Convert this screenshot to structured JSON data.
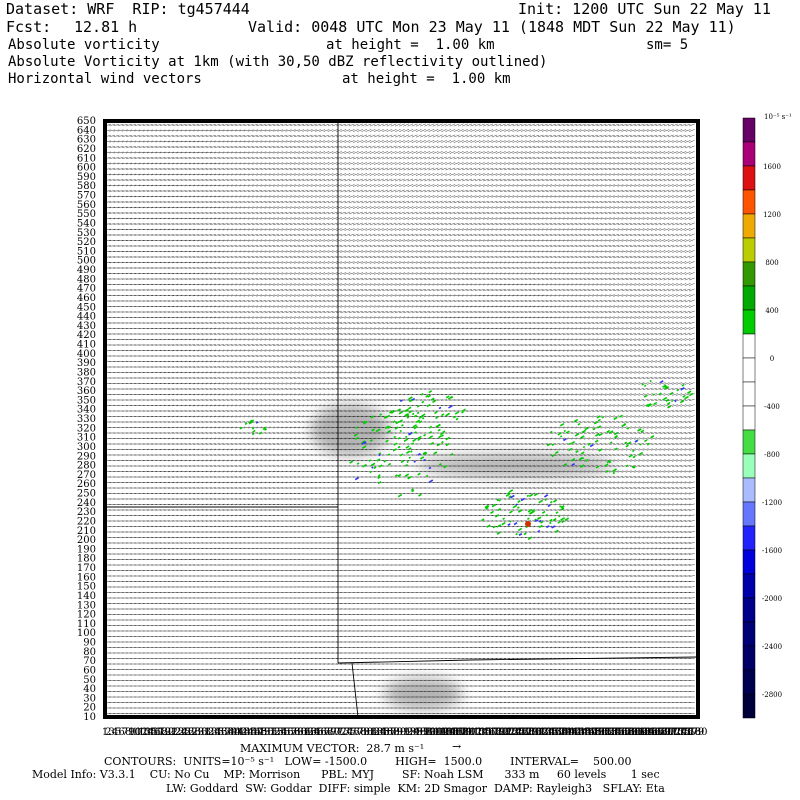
{
  "header": {
    "dataset": "Dataset: WRF  RIP: tg457444",
    "init": "Init: 1200 UTC Sun 22 May 11",
    "fcst_label": "Fcst:",
    "fcst_value": "12.81 h",
    "valid": "Valid: 0048 UTC Mon 23 May 11 (1848 MDT Sun 22 May 11)",
    "field1_name": "Absolute vorticity",
    "field1_height": "at height =  1.00 km",
    "field1_sm": "sm= 5",
    "field2_name": "Absolute Vorticity at 1km (with 30,50 dBZ reflectivity outlined)",
    "field3_name": "Horizontal wind vectors",
    "field3_height": "at height =  1.00 km"
  },
  "footer": {
    "max_vector": "MAXIMUM VECTOR:  28.7 m s⁻¹",
    "contours": "CONTOURS:  UNITS=10⁻⁵ s⁻¹   LOW= -1500.0        HIGH=  1500.0        INTERVAL=    500.00",
    "model_info": "Model Info: V3.3.1    CU: No Cu    MP: Morrison      PBL: MYJ        SF: Noah LSM      333 m     60 levels       1 sec",
    "model_info2": "LW: Goddard  SW: Goddar  DIFF: simple  KM: 2D Smagor  DAMP: Rayleigh3   SFLAY: Eta"
  },
  "colors": {
    "frame": "#000000",
    "wind_vectors": "#222222",
    "reflectivity_shading": "#b4b4b4",
    "positive_vorticity": "#00cc00",
    "negative_vorticity": "#3333ff",
    "state_lines": "#000000"
  },
  "chart_data": {
    "type": "heatmap",
    "x_axis": {
      "range": [
        1,
        180
      ],
      "tick_step": 1,
      "label": ""
    },
    "y_axis": {
      "range": [
        10,
        650
      ],
      "tick_labels": [
        "650",
        "640",
        "630",
        "620",
        "610",
        "600",
        "590",
        "580",
        "570",
        "560",
        "550",
        "540",
        "530",
        "520",
        "510",
        "500",
        "490",
        "480",
        "470",
        "460",
        "450",
        "440",
        "430",
        "420",
        "410",
        "400",
        "390",
        "380",
        "370",
        "360",
        "350",
        "340",
        "330",
        "320",
        "310",
        "300",
        "290",
        "280",
        "270",
        "260",
        "250",
        "240",
        "230",
        "220",
        "210",
        "200",
        "190",
        "180",
        "170",
        "160",
        "150",
        "140",
        "130",
        "120",
        "110",
        "100",
        "90",
        "80",
        "70",
        "60",
        "50",
        "40",
        "30",
        "20",
        "10"
      ]
    },
    "colorbar": {
      "units_label": "10⁻⁵ s⁻¹",
      "levels": [
        {
          "value": 1600,
          "label": "1600",
          "color": "#dd1111"
        },
        {
          "value": 1200,
          "label": "1200",
          "color": "#eeaa00"
        },
        {
          "value": 800,
          "label": "800",
          "color": "#339900"
        },
        {
          "value": 400,
          "label": "400",
          "color": "#00cc00"
        },
        {
          "value": 0,
          "label": "0",
          "color": "#ffffff"
        },
        {
          "value": -400,
          "label": "-400",
          "color": "#44dd44"
        },
        {
          "value": -800,
          "label": "-800",
          "color": "#99ffbb"
        },
        {
          "value": -1200,
          "label": "-1200",
          "color": "#6677ff"
        },
        {
          "value": -1600,
          "label": "-1600",
          "color": "#0000dd"
        },
        {
          "value": -2000,
          "label": "-2000",
          "color": "#00008b"
        },
        {
          "value": -2400,
          "label": "-2400",
          "color": "#000066"
        },
        {
          "value": -2800,
          "label": "-2800",
          "color": "#00003a"
        }
      ],
      "segment_colors": [
        "#660066",
        "#aa0077",
        "#dd1111",
        "#ff5500",
        "#eeaa00",
        "#bbcc00",
        "#339900",
        "#00aa00",
        "#00cc00",
        "#ffffff",
        "#ffffff",
        "#ffffff",
        "#ffffff",
        "#44dd44",
        "#99ffbb",
        "#aabbff",
        "#6677ff",
        "#2222ff",
        "#0000dd",
        "#0000aa",
        "#00008b",
        "#000077",
        "#000066",
        "#000050",
        "#00003a"
      ]
    },
    "max_vector_ms": 28.7,
    "reflectivity_regions": [
      {
        "name": "north-cell",
        "cx": 75,
        "cy": 318,
        "rx": 12,
        "ry": 28
      },
      {
        "name": "southeast-line",
        "cx": 125,
        "cy": 280,
        "rx": 30,
        "ry": 12
      },
      {
        "name": "south-cell",
        "cx": 97,
        "cy": 35,
        "rx": 12,
        "ry": 17
      }
    ]
  }
}
